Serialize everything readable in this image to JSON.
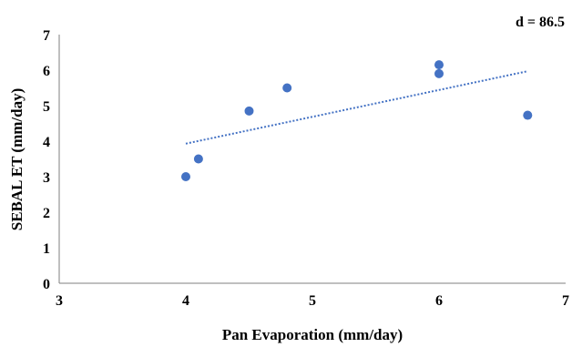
{
  "chart_data": {
    "type": "scatter",
    "xlabel": "Pan Evaporation (mm/day)",
    "ylabel": "SEBAL ET (mm/day)",
    "xlim": [
      3,
      7
    ],
    "ylim": [
      0,
      7
    ],
    "x_ticks": [
      "3",
      "4",
      "5",
      "6",
      "7"
    ],
    "y_ticks": [
      "0",
      "1",
      "2",
      "3",
      "4",
      "5",
      "6",
      "7"
    ],
    "annotation": "d = 86.5",
    "grid": false,
    "marker_color": "#4472C4",
    "trendline_color": "#4472C4",
    "series": [
      {
        "x": [
          4.0,
          4.1,
          4.5,
          4.8,
          6.0,
          6.0,
          6.7
        ],
        "y": [
          3.0,
          3.5,
          4.85,
          5.5,
          6.15,
          5.9,
          4.73
        ]
      }
    ],
    "trendline": {
      "type": "linear",
      "x": [
        4.0,
        6.7
      ],
      "y": [
        3.93,
        5.97
      ]
    }
  }
}
